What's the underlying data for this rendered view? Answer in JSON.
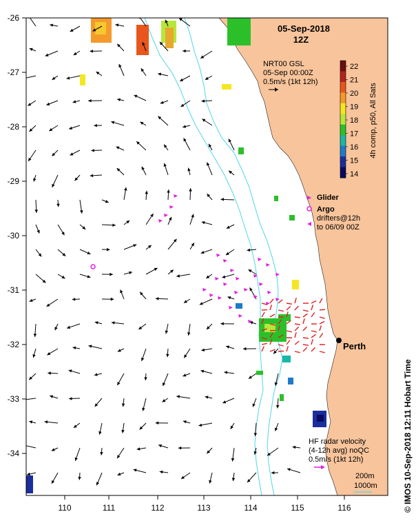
{
  "title": {
    "date": "05-Sep-2018",
    "time": "12Z"
  },
  "gsl": {
    "line1": "NRT00 GSL",
    "line2": "05-Sep 00:00Z",
    "line3": "0.5m/s (1kt 12h)"
  },
  "colorbar": {
    "label": "4h comp, p50, All Sats",
    "ticks": [
      "22",
      "21",
      "20",
      "19",
      "18",
      "17",
      "16",
      "15",
      "14"
    ],
    "colors": [
      "#6b0f12",
      "#b3231c",
      "#e8561d",
      "#f49a2a",
      "#f5e621",
      "#b6e73a",
      "#2bc02a",
      "#19b7a8",
      "#1e7bc9",
      "#1a2e9c",
      "#0a0a5e"
    ]
  },
  "legend": {
    "glider": "Glider",
    "argo": "Argo",
    "drifters1": "drifters@12h",
    "drifters2": "to 06/09 00Z"
  },
  "city": "Perth",
  "hf": {
    "line1": "HF radar velocity",
    "line2": "(4-12h avg) noQC",
    "line3": "0.5m/s (1kt 12h)"
  },
  "isobaths": {
    "d1": "200m",
    "d2": "1000m"
  },
  "credit": "© IMOS 10-Sep-2018 12:11 Hobart Time",
  "axes": {
    "y_ticks": [
      "-26",
      "-27",
      "-28",
      "-29",
      "-30",
      "-31",
      "-32",
      "-33",
      "-34"
    ],
    "x_ticks": [
      "110",
      "111",
      "112",
      "113",
      "114",
      "115",
      "116"
    ]
  },
  "colors": {
    "land": "#f8c49b",
    "isobath": "#4fd6e6",
    "glider": "#e020e0",
    "hf": "#e02020"
  }
}
